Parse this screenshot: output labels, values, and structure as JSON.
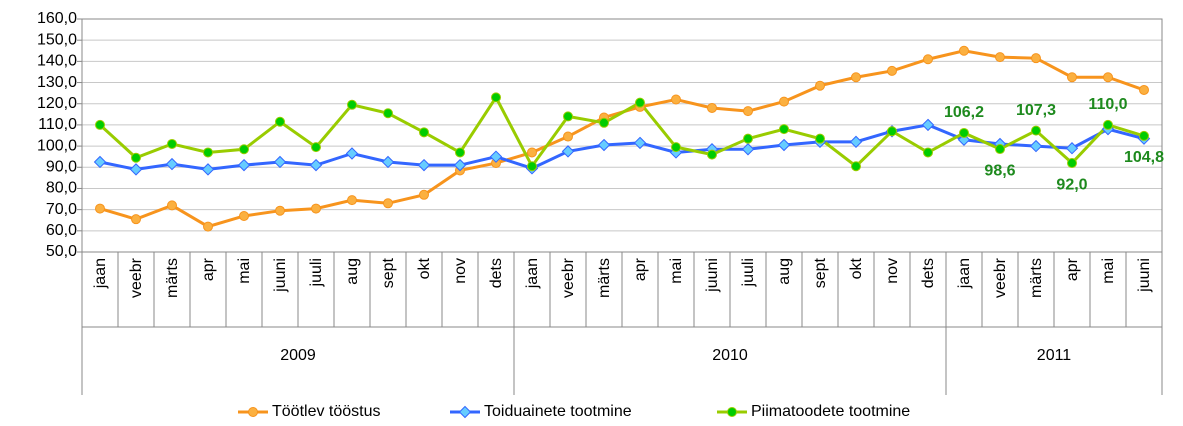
{
  "chart_data": {
    "type": "line",
    "groups": [
      {
        "name": "2009",
        "categories": [
          "jaan",
          "veebr",
          "märts",
          "apr",
          "mai",
          "juuni",
          "juuli",
          "aug",
          "sept",
          "okt",
          "nov",
          "dets"
        ]
      },
      {
        "name": "2010",
        "categories": [
          "jaan",
          "veebr",
          "märts",
          "apr",
          "mai",
          "juuni",
          "juuli",
          "aug",
          "sept",
          "okt",
          "nov",
          "dets"
        ]
      },
      {
        "name": "2011",
        "categories": [
          "jaan",
          "veebr",
          "märts",
          "apr",
          "mai",
          "juuni"
        ]
      }
    ],
    "series": [
      {
        "name": "Töötlev tööstus",
        "color": "#f7941d",
        "marker": "circle",
        "marker_fill": "#fbb040",
        "values": [
          70.5,
          65.5,
          72,
          62,
          67,
          69.5,
          70.5,
          74.5,
          73,
          77,
          88.5,
          92,
          97,
          104.5,
          113.5,
          118.5,
          122,
          118,
          116.5,
          121,
          128.5,
          132.5,
          135.5,
          141,
          145,
          142,
          141.5,
          132.5,
          132.5,
          126.5
        ]
      },
      {
        "name": "Toiduainete tootmine",
        "color": "#3366ff",
        "marker": "diamond",
        "marker_fill": "#66ccff",
        "values": [
          92.5,
          89,
          91.5,
          89,
          91,
          92.5,
          91,
          96.5,
          92.5,
          91,
          91,
          95,
          89.5,
          97.5,
          100.5,
          101.5,
          97,
          98.5,
          98.5,
          100.5,
          102,
          102,
          107,
          110,
          103,
          101,
          100,
          99,
          108,
          103.5
        ]
      },
      {
        "name": "Piimatoodete tootmine",
        "color": "#99cc00",
        "marker": "circle",
        "marker_fill": "#00cc00",
        "values": [
          110,
          94.5,
          101,
          97,
          98.5,
          111.5,
          99.5,
          119.5,
          115.5,
          106.5,
          97,
          123,
          90.5,
          114,
          111,
          120.5,
          99.5,
          96,
          103.5,
          108,
          103.5,
          90.5,
          107,
          97,
          106.2,
          98.6,
          107.3,
          92.0,
          110.0,
          104.8
        ],
        "value_labels": [
          null,
          null,
          null,
          null,
          null,
          null,
          null,
          null,
          null,
          null,
          null,
          null,
          null,
          null,
          null,
          null,
          null,
          null,
          null,
          null,
          null,
          null,
          null,
          null,
          "106,2",
          "98,6",
          "107,3",
          "92,0",
          "110,0",
          "104,8"
        ],
        "value_label_color": "#1e8a1e"
      }
    ],
    "ylim": [
      50,
      160
    ],
    "yticks": [
      {
        "value": 50,
        "label": "50,0"
      },
      {
        "value": 60,
        "label": "60,0"
      },
      {
        "value": 70,
        "label": "70,0"
      },
      {
        "value": 80,
        "label": "80,0"
      },
      {
        "value": 90,
        "label": "90,0"
      },
      {
        "value": 100,
        "label": "100,0"
      },
      {
        "value": 110,
        "label": "110,0"
      },
      {
        "value": 120,
        "label": "120,0"
      },
      {
        "value": 130,
        "label": "130,0"
      },
      {
        "value": 140,
        "label": "140,0"
      },
      {
        "value": 150,
        "label": "150,0"
      },
      {
        "value": 160,
        "label": "160,0"
      }
    ],
    "grid": true,
    "legend": "bottom"
  }
}
